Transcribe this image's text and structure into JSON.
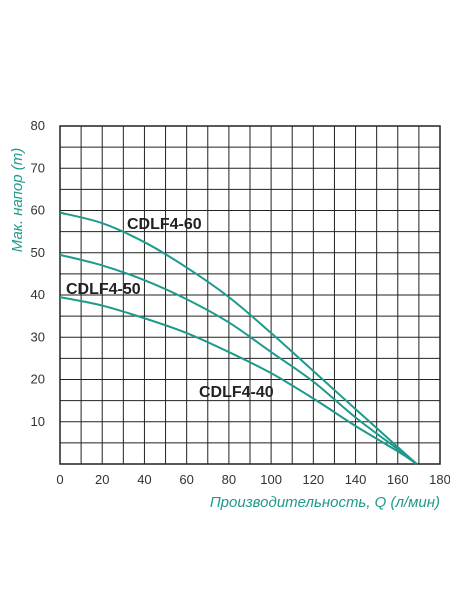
{
  "chart_data": {
    "type": "line",
    "xlabel": "Производительность, Q (л/мин)",
    "ylabel": "Мак. напор (m)",
    "xlim": [
      0,
      180
    ],
    "ylim": [
      0,
      80
    ],
    "x_ticks": [
      0,
      20,
      40,
      60,
      80,
      100,
      120,
      140,
      160,
      180
    ],
    "y_ticks": [
      10,
      20,
      30,
      40,
      50,
      60,
      70,
      80
    ],
    "x_grid_step": 10,
    "y_grid_step": 5,
    "grid": true,
    "series": [
      {
        "name": "CDLF4-60",
        "x": [
          0,
          20,
          40,
          60,
          80,
          100,
          120,
          140,
          160,
          169
        ],
        "y": [
          59.5,
          57,
          52.5,
          46.5,
          39.5,
          31,
          22,
          13,
          4,
          0
        ]
      },
      {
        "name": "CDLF4-50",
        "x": [
          0,
          20,
          40,
          60,
          80,
          100,
          120,
          140,
          160,
          169
        ],
        "y": [
          49.5,
          47,
          43.5,
          39,
          33.5,
          26.5,
          19.5,
          11,
          3.5,
          0
        ]
      },
      {
        "name": "CDLF4-40",
        "x": [
          0,
          20,
          40,
          60,
          80,
          100,
          120,
          140,
          160,
          169
        ],
        "y": [
          39.5,
          37.5,
          34.5,
          31,
          26.5,
          21.5,
          15.5,
          9,
          3,
          0
        ]
      }
    ]
  },
  "colors": {
    "curve": "#1e9a8c",
    "grid": "#222222",
    "axis_title": "#1e9a8c",
    "tick_text": "#333333"
  }
}
